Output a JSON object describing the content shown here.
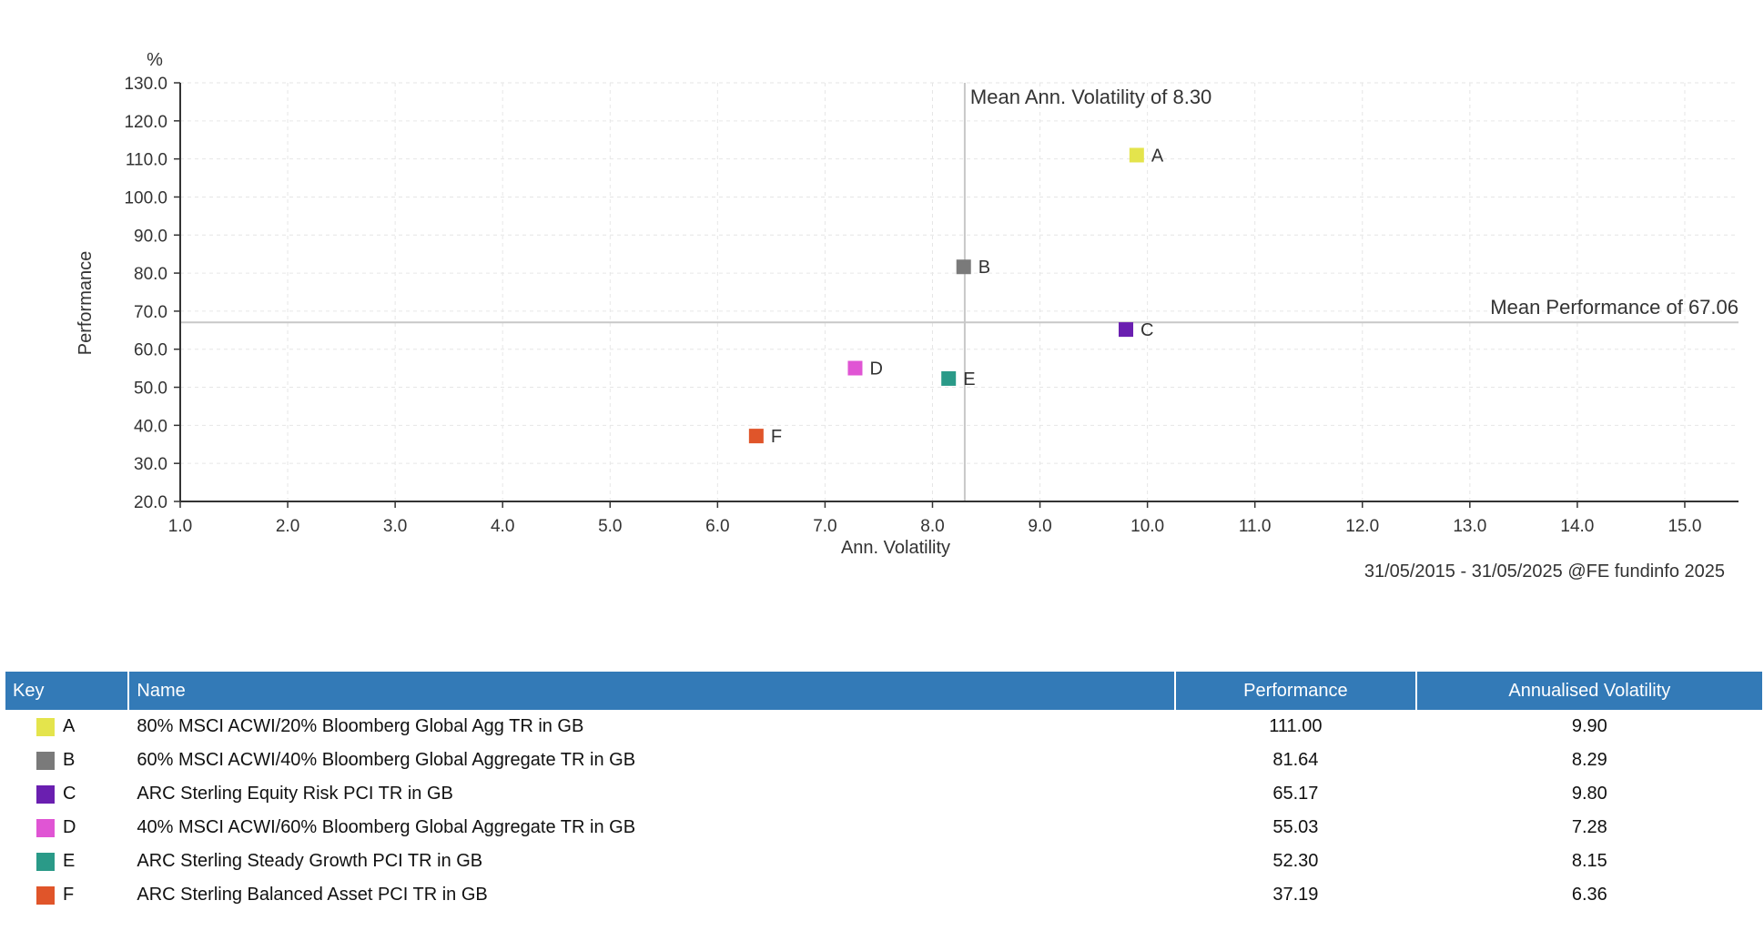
{
  "chart_data": {
    "type": "scatter",
    "title": "",
    "xlabel": "Ann. Volatility",
    "ylabel": "Performance",
    "y_unit": "%",
    "xlim": [
      1.0,
      15.5
    ],
    "ylim": [
      20.0,
      130.0
    ],
    "x_ticks": [
      1.0,
      2.0,
      3.0,
      4.0,
      5.0,
      6.0,
      7.0,
      8.0,
      9.0,
      10.0,
      11.0,
      12.0,
      13.0,
      14.0,
      15.0
    ],
    "y_ticks": [
      20.0,
      30.0,
      40.0,
      50.0,
      60.0,
      70.0,
      80.0,
      90.0,
      100.0,
      110.0,
      120.0,
      130.0
    ],
    "grid": true,
    "points": [
      {
        "key": "A",
        "x": 9.9,
        "y": 111.0,
        "color": "#e4e44c"
      },
      {
        "key": "B",
        "x": 8.29,
        "y": 81.64,
        "color": "#7a7a7a"
      },
      {
        "key": "C",
        "x": 9.8,
        "y": 65.17,
        "color": "#6a1fb0"
      },
      {
        "key": "D",
        "x": 7.28,
        "y": 55.03,
        "color": "#e055d4"
      },
      {
        "key": "E",
        "x": 8.15,
        "y": 52.3,
        "color": "#2a9a88"
      },
      {
        "key": "F",
        "x": 6.36,
        "y": 37.19,
        "color": "#e0552a"
      }
    ],
    "reference_lines": {
      "mean_volatility": {
        "value": 8.3,
        "label": "Mean Ann. Volatility of 8.30"
      },
      "mean_performance": {
        "value": 67.06,
        "label": "Mean Performance of 67.06"
      }
    },
    "footer": "31/05/2015 - 31/05/2025 @FE fundinfo 2025"
  },
  "table": {
    "headers": {
      "key": "Key",
      "name": "Name",
      "performance": "Performance",
      "volatility": "Annualised Volatility"
    },
    "header_color": "#337ab7",
    "rows": [
      {
        "key": "A",
        "color": "#e4e44c",
        "name": "80% MSCI ACWI/20% Bloomberg Global Agg TR in GB",
        "performance": "111.00",
        "volatility": "9.90"
      },
      {
        "key": "B",
        "color": "#7a7a7a",
        "name": "60% MSCI ACWI/40% Bloomberg Global Aggregate TR in GB",
        "performance": "81.64",
        "volatility": "8.29"
      },
      {
        "key": "C",
        "color": "#6a1fb0",
        "name": "ARC Sterling Equity Risk PCI TR in GB",
        "performance": "65.17",
        "volatility": "9.80"
      },
      {
        "key": "D",
        "color": "#e055d4",
        "name": "40% MSCI ACWI/60% Bloomberg Global Aggregate TR in GB",
        "performance": "55.03",
        "volatility": "7.28"
      },
      {
        "key": "E",
        "color": "#2a9a88",
        "name": "ARC Sterling Steady Growth PCI TR in GB",
        "performance": "52.30",
        "volatility": "8.15"
      },
      {
        "key": "F",
        "color": "#e0552a",
        "name": "ARC Sterling Balanced Asset PCI TR in GB",
        "performance": "37.19",
        "volatility": "6.36"
      }
    ]
  }
}
